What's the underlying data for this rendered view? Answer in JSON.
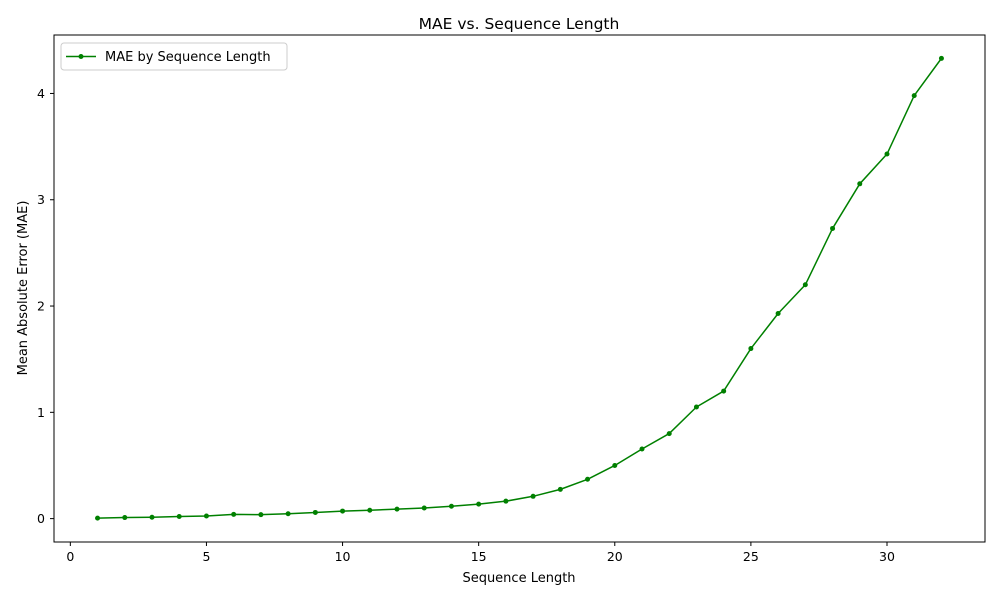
{
  "chart_data": {
    "type": "line",
    "title": "MAE vs. Sequence Length",
    "xlabel": "Sequence Length",
    "ylabel": "Mean Absolute Error (MAE)",
    "xlim": [
      -0.6,
      33.6
    ],
    "ylim": [
      -0.22,
      4.55
    ],
    "xticks": [
      0,
      5,
      10,
      15,
      20,
      25,
      30
    ],
    "yticks": [
      0,
      1,
      2,
      3,
      4
    ],
    "grid": false,
    "legend": "top-left",
    "series": [
      {
        "name": "MAE by Sequence Length",
        "color": "#008000",
        "marker": "circle",
        "x": [
          1,
          2,
          3,
          4,
          5,
          6,
          7,
          8,
          9,
          10,
          11,
          12,
          13,
          14,
          15,
          16,
          17,
          18,
          19,
          20,
          21,
          22,
          23,
          24,
          25,
          26,
          27,
          28,
          29,
          30,
          31,
          32
        ],
        "y": [
          0.005,
          0.01,
          0.013,
          0.02,
          0.025,
          0.04,
          0.037,
          0.046,
          0.058,
          0.071,
          0.079,
          0.089,
          0.1,
          0.116,
          0.136,
          0.164,
          0.21,
          0.275,
          0.37,
          0.5,
          0.655,
          0.8,
          1.05,
          1.2,
          1.6,
          1.93,
          2.2,
          2.73,
          3.15,
          3.43,
          3.98,
          4.33
        ]
      }
    ]
  }
}
